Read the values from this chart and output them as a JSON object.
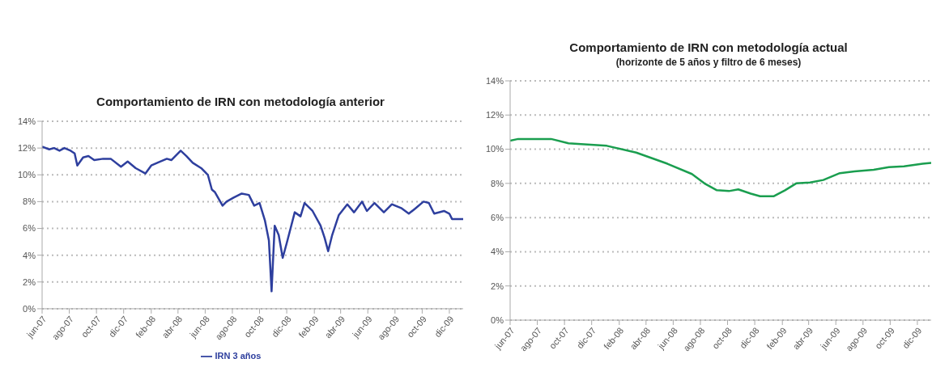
{
  "chart_data": [
    {
      "type": "line",
      "title": "Comportamiento de IRN con metodología anterior",
      "grid": "y",
      "legend": "bottom",
      "line_style": "solid",
      "marker": "none",
      "xlim": [
        "2007-06-01",
        "2010-01-01"
      ],
      "xticks": [
        {
          "value": "2007-06-01",
          "label": "jun-07"
        },
        {
          "value": "2007-08-01",
          "label": "ago-07"
        },
        {
          "value": "2007-10-01",
          "label": "oct-07"
        },
        {
          "value": "2007-12-01",
          "label": "dic-07"
        },
        {
          "value": "2008-02-01",
          "label": "feb-08"
        },
        {
          "value": "2008-04-01",
          "label": "abr-08"
        },
        {
          "value": "2008-06-01",
          "label": "jun-08"
        },
        {
          "value": "2008-08-01",
          "label": "ago-08"
        },
        {
          "value": "2008-10-01",
          "label": "oct-08"
        },
        {
          "value": "2008-12-01",
          "label": "dic-08"
        },
        {
          "value": "2009-02-01",
          "label": "feb-09"
        },
        {
          "value": "2009-04-01",
          "label": "abr-09"
        },
        {
          "value": "2009-06-01",
          "label": "jun-09"
        },
        {
          "value": "2009-08-01",
          "label": "ago-09"
        },
        {
          "value": "2009-10-01",
          "label": "oct-09"
        },
        {
          "value": "2009-12-01",
          "label": "dic-09"
        }
      ],
      "ylim": [
        0,
        14
      ],
      "yticks": [
        {
          "value": 0,
          "label": "0%"
        },
        {
          "value": 2,
          "label": "2%"
        },
        {
          "value": 4,
          "label": "4%"
        },
        {
          "value": 6,
          "label": "6%"
        },
        {
          "value": 8,
          "label": "8%"
        },
        {
          "value": 10,
          "label": "10%"
        },
        {
          "value": 12,
          "label": "12%"
        },
        {
          "value": 14,
          "label": "14%"
        }
      ],
      "series": [
        {
          "name": "IRN 3 años",
          "color": "#2e3f9e",
          "x": [
            "2007-06-01",
            "2007-06-17",
            "2007-06-28",
            "2007-07-10",
            "2007-07-21",
            "2007-08-04",
            "2007-08-13",
            "2007-08-19",
            "2007-09-01",
            "2007-09-13",
            "2007-09-26",
            "2007-10-16",
            "2007-11-02",
            "2007-11-25",
            "2007-12-10",
            "2007-12-28",
            "2008-01-19",
            "2008-02-01",
            "2008-02-22",
            "2008-03-07",
            "2008-03-17",
            "2008-04-07",
            "2008-04-20",
            "2008-05-04",
            "2008-05-23",
            "2008-06-07",
            "2008-06-16",
            "2008-06-23",
            "2008-07-10",
            "2008-07-19",
            "2008-08-04",
            "2008-08-22",
            "2008-09-07",
            "2008-09-19",
            "2008-10-01",
            "2008-10-13",
            "2008-10-22",
            "2008-10-28",
            "2008-11-04",
            "2008-11-13",
            "2008-11-22",
            "2008-12-01",
            "2008-12-19",
            "2009-01-01",
            "2009-01-10",
            "2009-01-28",
            "2009-02-15",
            "2009-02-24",
            "2009-03-04",
            "2009-03-13",
            "2009-03-28",
            "2009-04-16",
            "2009-05-01",
            "2009-05-19",
            "2009-05-30",
            "2009-06-16",
            "2009-07-07",
            "2009-07-25",
            "2009-08-16",
            "2009-09-01",
            "2009-09-16",
            "2009-10-04",
            "2009-10-16",
            "2009-10-28",
            "2009-11-19",
            "2009-12-01",
            "2009-12-07",
            "2010-01-01"
          ],
          "values": [
            12.1,
            11.9,
            12.0,
            11.8,
            12.0,
            11.8,
            11.6,
            10.7,
            11.3,
            11.4,
            11.1,
            11.2,
            11.2,
            10.6,
            11.0,
            10.5,
            10.1,
            10.7,
            11.0,
            11.2,
            11.1,
            11.8,
            11.4,
            10.9,
            10.5,
            10.0,
            8.9,
            8.7,
            7.7,
            8.0,
            8.3,
            8.6,
            8.5,
            7.7,
            7.9,
            6.6,
            5.1,
            1.3,
            6.2,
            5.5,
            3.8,
            4.9,
            7.2,
            6.9,
            7.9,
            7.3,
            6.2,
            5.3,
            4.3,
            5.5,
            7.0,
            7.8,
            7.2,
            8.0,
            7.3,
            7.9,
            7.2,
            7.8,
            7.5,
            7.1,
            7.5,
            8.0,
            7.9,
            7.1,
            7.3,
            7.1,
            6.7,
            6.7
          ]
        }
      ]
    },
    {
      "type": "line",
      "title": "Comportamiento de IRN con metodología actual",
      "subtitle": "(horizonte de 5 años y filtro de 6 meses)",
      "grid": "y",
      "line_style": "solid",
      "marker": "none",
      "xlim": [
        "2007-06-01",
        "2010-01-01"
      ],
      "xticks": [
        {
          "value": "2007-06-01",
          "label": "jun-07"
        },
        {
          "value": "2007-08-01",
          "label": "ago-07"
        },
        {
          "value": "2007-10-01",
          "label": "oct-07"
        },
        {
          "value": "2007-12-01",
          "label": "dic-07"
        },
        {
          "value": "2008-02-01",
          "label": "feb-08"
        },
        {
          "value": "2008-04-01",
          "label": "abr-08"
        },
        {
          "value": "2008-06-01",
          "label": "jun-08"
        },
        {
          "value": "2008-08-01",
          "label": "ago-08"
        },
        {
          "value": "2008-10-01",
          "label": "oct-08"
        },
        {
          "value": "2008-12-01",
          "label": "dic-08"
        },
        {
          "value": "2009-02-01",
          "label": "feb-09"
        },
        {
          "value": "2009-04-01",
          "label": "abr-09"
        },
        {
          "value": "2009-06-01",
          "label": "jun-09"
        },
        {
          "value": "2009-08-01",
          "label": "ago-09"
        },
        {
          "value": "2009-10-01",
          "label": "oct-09"
        },
        {
          "value": "2009-12-01",
          "label": "dic-09"
        }
      ],
      "ylim": [
        0,
        14
      ],
      "yticks": [
        {
          "value": 0,
          "label": "0%"
        },
        {
          "value": 2,
          "label": "2%"
        },
        {
          "value": 4,
          "label": "4%"
        },
        {
          "value": 6,
          "label": "6%"
        },
        {
          "value": 8,
          "label": "8%"
        },
        {
          "value": 10,
          "label": "10%"
        },
        {
          "value": 12,
          "label": "12%"
        },
        {
          "value": 14,
          "label": "14%"
        }
      ],
      "series": [
        {
          "color": "#1a9e4f",
          "x": [
            "2007-06-01",
            "2007-06-19",
            "2007-09-01",
            "2007-10-10",
            "2007-11-07",
            "2008-01-04",
            "2008-03-10",
            "2008-05-19",
            "2008-07-13",
            "2008-08-10",
            "2008-09-07",
            "2008-10-04",
            "2008-10-25",
            "2008-11-22",
            "2008-12-13",
            "2009-01-13",
            "2009-02-07",
            "2009-03-04",
            "2009-04-04",
            "2009-05-04",
            "2009-06-10",
            "2009-07-13",
            "2009-08-25",
            "2009-09-28",
            "2009-11-01",
            "2009-12-13",
            "2010-01-01"
          ],
          "values": [
            10.5,
            10.6,
            10.6,
            10.35,
            10.3,
            10.2,
            9.8,
            9.15,
            8.55,
            8.0,
            7.6,
            7.55,
            7.65,
            7.4,
            7.25,
            7.25,
            7.6,
            8.0,
            8.05,
            8.2,
            8.6,
            8.7,
            8.8,
            8.95,
            9.0,
            9.15,
            9.2
          ]
        }
      ]
    }
  ]
}
